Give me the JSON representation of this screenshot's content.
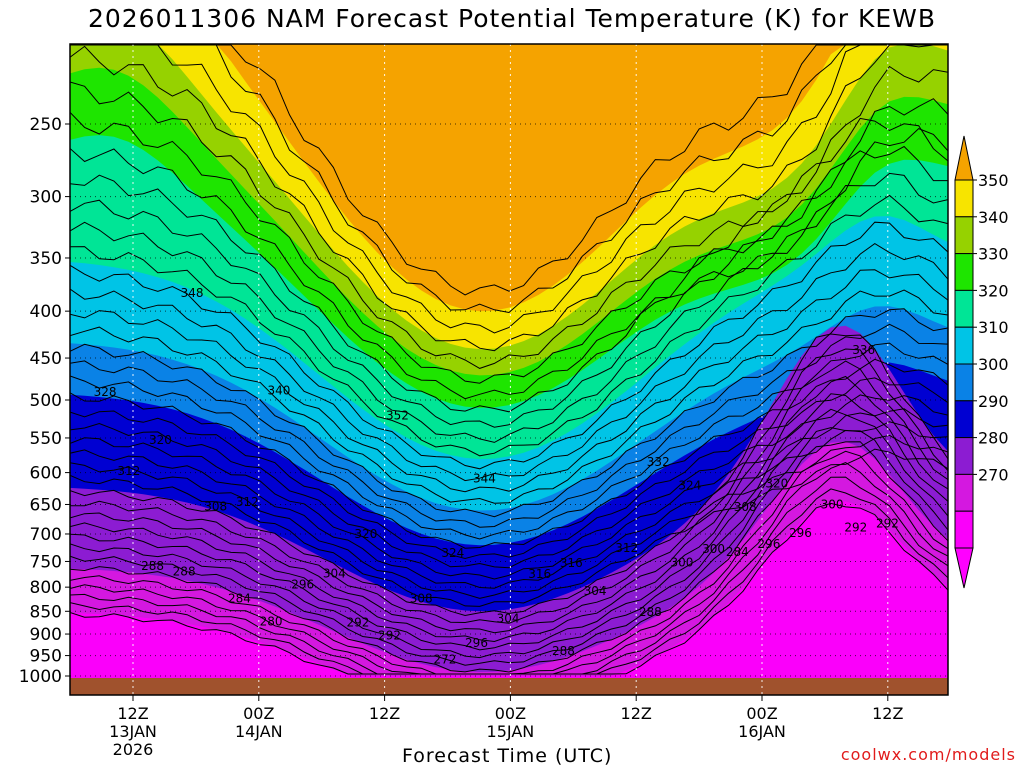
{
  "title": "2026011306 NAM Forecast Potential Temperature (K) for KEWB",
  "watermark": "coolwx.com/models",
  "chart_data": {
    "type": "contour",
    "title": "2026011306 NAM Forecast Potential Temperature (K) for KEWB",
    "xlabel": "Forecast Time (UTC)",
    "ylabel": "",
    "y_scale": "log-pressure (hPa), decreasing upward",
    "ylim": [
      1000,
      200
    ],
    "y_ticks": [
      "250",
      "300",
      "350",
      "400",
      "450",
      "500",
      "550",
      "600",
      "650",
      "700",
      "750",
      "800",
      "850",
      "900",
      "950",
      "1000"
    ],
    "x_ticks": [
      {
        "hour": "12Z",
        "day": "13JAN",
        "year": "2026"
      },
      {
        "hour": "00Z",
        "day": "14JAN",
        "year": ""
      },
      {
        "hour": "12Z",
        "day": "",
        "year": ""
      },
      {
        "hour": "00Z",
        "day": "15JAN",
        "year": ""
      },
      {
        "hour": "12Z",
        "day": "",
        "year": ""
      },
      {
        "hour": "00Z",
        "day": "16JAN",
        "year": ""
      },
      {
        "hour": "12Z",
        "day": "",
        "year": ""
      }
    ],
    "grid": true,
    "colorbar": {
      "placement": "right",
      "labels": [
        "350",
        "340",
        "330",
        "320",
        "310",
        "300",
        "290",
        "280",
        "270"
      ],
      "colors": [
        "#f7e400",
        "#96d200",
        "#1ee500",
        "#00e596",
        "#00c4e6",
        "#0a82e6",
        "#0000d2",
        "#8c1cd2",
        "#d418e0",
        "#fa00fa"
      ],
      "cap_top": "#f5a300",
      "cap_bottom": "#ff00ff"
    },
    "contour_labels": [
      "328",
      "352",
      "324",
      "348",
      "344",
      "320",
      "340",
      "316",
      "336",
      "320",
      "332",
      "320",
      "324",
      "308",
      "312",
      "316",
      "300",
      "304",
      "312",
      "312",
      "308",
      "300",
      "308",
      "304",
      "296",
      "296",
      "304",
      "292",
      "292",
      "300",
      "288",
      "296",
      "296",
      "280",
      "288",
      "292",
      "292",
      "288",
      "288",
      "272",
      "284",
      "284"
    ],
    "ground": "#a0522d"
  }
}
